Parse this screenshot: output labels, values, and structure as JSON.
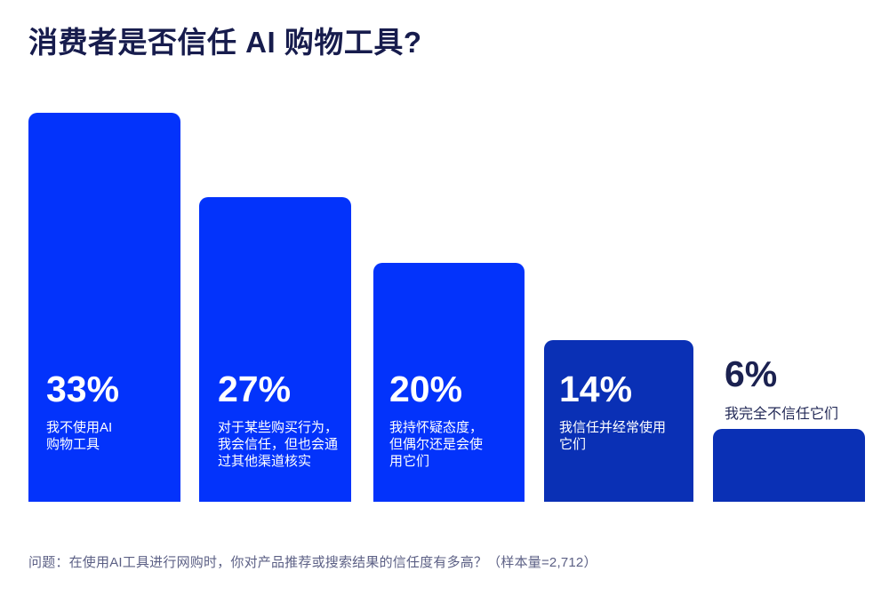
{
  "title": "消费者是否信任 AI 购物工具?",
  "footnote": "问题：在使用AI工具进行网购时，你对产品推荐或搜索结果的信任度有多高？（样本量=2,712）",
  "colors": {
    "bar_primary": "#0333FB",
    "bar_dark": "#0A30B5",
    "title_text": "#171C4D",
    "footnote_text": "#5C6085",
    "bar_text": "#FFFFFF",
    "above_bar_text": "#1B2150",
    "background": "#FFFFFF"
  },
  "chart_data": {
    "type": "bar",
    "title": "消费者是否信任 AI 购物工具?",
    "unit": "%",
    "ylim": [
      0,
      35
    ],
    "grid": false,
    "legend": "none",
    "sample_size": "2,712",
    "categories": [
      "我不使用AI购物工具",
      "对于某些购买行为，我会信任，但也会通过其他渠道核实",
      "我持怀疑态度，但偶尔还是会使用它们",
      "我信任并经常使用它们",
      "我完全不信任它们"
    ],
    "values": [
      33,
      27,
      20,
      14,
      6
    ],
    "bars": [
      {
        "value": 33,
        "value_label": "33%",
        "label": "我不使用AI购物工具",
        "lines": [
          "我不使用AI",
          "购物工具"
        ],
        "color": "#0333FB",
        "label_position": "inside"
      },
      {
        "value": 27,
        "value_label": "27%",
        "label": "对于某些购买行为，我会信任，但也会通过其他渠道核实",
        "lines": [
          "对于某些购买行为，",
          "我会信任，但也会通",
          "过其他渠道核实"
        ],
        "color": "#0333FB",
        "label_position": "inside"
      },
      {
        "value": 20,
        "value_label": "20%",
        "label": "我持怀疑态度，但偶尔还是会使用它们",
        "lines": [
          "我持怀疑态度，",
          "但偶尔还是会使",
          "用它们"
        ],
        "color": "#0333FB",
        "label_position": "inside"
      },
      {
        "value": 14,
        "value_label": "14%",
        "label": "我信任并经常使用它们",
        "lines": [
          "我信任并经常使用",
          "它们"
        ],
        "color": "#0A30B5",
        "label_position": "inside"
      },
      {
        "value": 6,
        "value_label": "6%",
        "label": "我完全不信任它们",
        "lines": [
          "我完全不信任它们"
        ],
        "color": "#0A30B5",
        "label_position": "above"
      }
    ]
  }
}
